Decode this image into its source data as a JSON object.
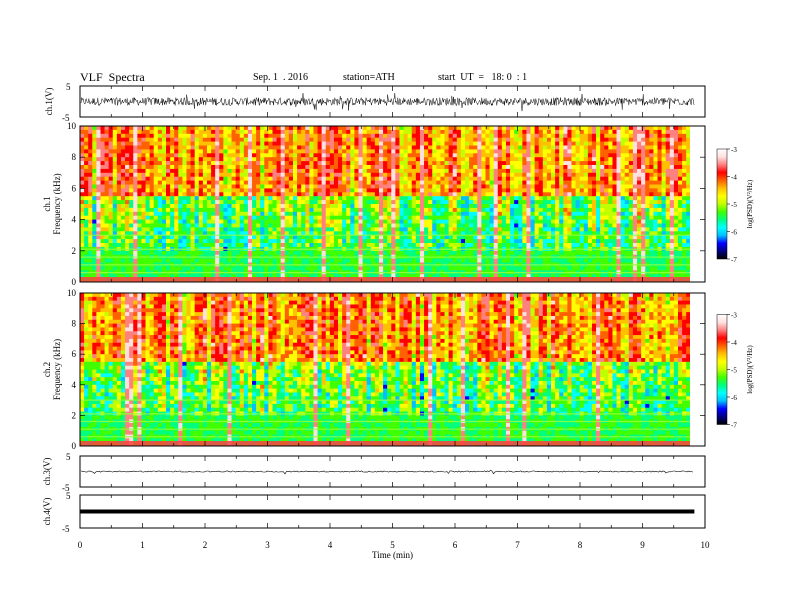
{
  "header": {
    "title": "VLF  Spectra",
    "date": "Sep. 1  . 2016",
    "station": "station=ATH",
    "start": "start  UT  =   18: 0  : 1"
  },
  "colors": {
    "colormap": [
      "#000000",
      "#000080",
      "#0000ff",
      "#00c0ff",
      "#00ffff",
      "#00ff80",
      "#40ff00",
      "#c0ff00",
      "#ffff00",
      "#ffc000",
      "#ff6000",
      "#ff0000",
      "#ff8080",
      "#ffe0e0",
      "#ffffff"
    ]
  },
  "chart_data": [
    {
      "type": "line",
      "panel": "ch1-waveform",
      "ylabel": "ch.1(V)",
      "ylim": [
        -5,
        5
      ],
      "yticks": [
        "5",
        "-5"
      ],
      "xlim": [
        0,
        10
      ],
      "note_values": "noisy waveform, amplitude roughly ±1.5 V around 0"
    },
    {
      "type": "heatmap",
      "panel": "ch1-spectrogram",
      "ylabel_line1": "ch.1",
      "ylabel_line2": "Frequency  (kHz)",
      "ylim": [
        0,
        10
      ],
      "yticks": [
        "10",
        "8",
        "6",
        "4",
        "2",
        "0"
      ],
      "xlim": [
        0,
        10
      ],
      "colorbar": {
        "label": "log(PSD)(V²/Hz)",
        "min": -7,
        "max": -3,
        "ticks": [
          "-3",
          "-4",
          "-5",
          "-6",
          "-7"
        ]
      }
    },
    {
      "type": "heatmap",
      "panel": "ch2-spectrogram",
      "ylabel_line1": "ch.2",
      "ylabel_line2": "Frequency  (kHz)",
      "ylim": [
        0,
        10
      ],
      "yticks": [
        "10",
        "8",
        "6",
        "4",
        "2",
        "0"
      ],
      "xlim": [
        0,
        10
      ],
      "colorbar": {
        "label": "log(PSD)(V²/Hz)",
        "min": -7,
        "max": -3,
        "ticks": [
          "-3",
          "-4",
          "-5",
          "-6",
          "-7"
        ]
      }
    },
    {
      "type": "line",
      "panel": "ch3-waveform",
      "ylabel": "ch.3(V)",
      "ylim": [
        -5,
        5
      ],
      "yticks": [
        "5",
        "-5"
      ],
      "xlim": [
        0,
        10
      ],
      "values_approx": 0
    },
    {
      "type": "line",
      "panel": "ch4-waveform",
      "ylabel": "ch.4(V)",
      "ylim": [
        -5,
        5
      ],
      "yticks": [
        "5",
        "-5"
      ],
      "xlim": [
        0,
        10
      ],
      "values_approx": 0
    },
    {
      "type": "axis",
      "xlabel": "Time  (min)",
      "xticks": [
        "0",
        "1",
        "2",
        "3",
        "4",
        "5",
        "6",
        "7",
        "8",
        "9",
        "10"
      ],
      "xlim": [
        0,
        10
      ],
      "data_end_min": 9.83
    }
  ]
}
